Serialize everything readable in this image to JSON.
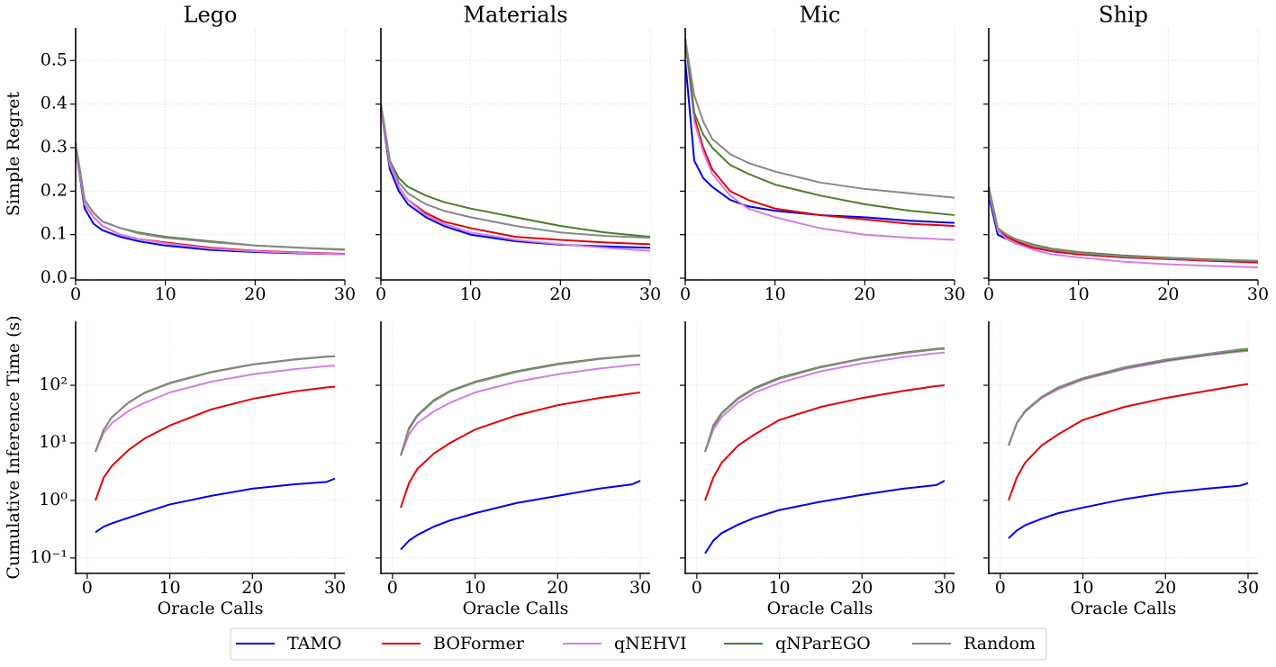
{
  "chart_data": [
    {
      "type": "line",
      "title": "Lego",
      "ylabel": "Simple Regret",
      "grid": true,
      "x": [
        0,
        1,
        2,
        3,
        5,
        7,
        10,
        15,
        20,
        25,
        30
      ],
      "xlim": [
        0,
        30
      ],
      "xticks": [
        0,
        10,
        20,
        30
      ],
      "ylim": [
        -0.004,
        0.575
      ],
      "yticks": [
        {
          "value": 0,
          "label": "0.0"
        },
        0.1,
        0.2,
        0.3,
        0.4,
        0.5
      ],
      "series": [
        {
          "name": "TAMO",
          "color": "#0000ee",
          "values": [
            0.3,
            0.16,
            0.125,
            0.11,
            0.095,
            0.085,
            0.075,
            0.065,
            0.06,
            0.057,
            0.055
          ]
        },
        {
          "name": "BOFormer",
          "color": "#e60000",
          "values": [
            0.3,
            0.17,
            0.14,
            0.12,
            0.1,
            0.09,
            0.082,
            0.07,
            0.063,
            0.059,
            0.056
          ]
        },
        {
          "name": "qNEHVI",
          "color": "#d47ee6",
          "values": [
            0.3,
            0.17,
            0.14,
            0.12,
            0.1,
            0.09,
            0.08,
            0.068,
            0.062,
            0.058,
            0.055
          ]
        },
        {
          "name": "qNParEGO",
          "color": "#4a7f2a",
          "values": [
            0.31,
            0.18,
            0.15,
            0.13,
            0.115,
            0.105,
            0.095,
            0.085,
            0.075,
            0.07,
            0.066
          ]
        },
        {
          "name": "Random",
          "color": "#888888",
          "values": [
            0.31,
            0.18,
            0.15,
            0.13,
            0.115,
            0.103,
            0.093,
            0.083,
            0.075,
            0.07,
            0.065
          ]
        }
      ]
    },
    {
      "type": "line",
      "title": "Materials",
      "grid": true,
      "x": [
        0,
        1,
        2,
        3,
        5,
        7,
        10,
        15,
        20,
        25,
        30
      ],
      "xlim": [
        0,
        30
      ],
      "xticks": [
        0,
        10,
        20,
        30
      ],
      "ylim": [
        -0.004,
        0.575
      ],
      "yticks": [
        0,
        0.1,
        0.2,
        0.3,
        0.4,
        0.5
      ],
      "series": [
        {
          "name": "TAMO",
          "color": "#0000ee",
          "values": [
            0.39,
            0.25,
            0.2,
            0.17,
            0.14,
            0.12,
            0.1,
            0.085,
            0.077,
            0.073,
            0.07
          ]
        },
        {
          "name": "BOFormer",
          "color": "#e60000",
          "values": [
            0.39,
            0.26,
            0.21,
            0.18,
            0.15,
            0.13,
            0.115,
            0.095,
            0.088,
            0.082,
            0.078
          ]
        },
        {
          "name": "qNEHVI",
          "color": "#d47ee6",
          "values": [
            0.39,
            0.26,
            0.21,
            0.18,
            0.145,
            0.125,
            0.105,
            0.088,
            0.078,
            0.07,
            0.063
          ]
        },
        {
          "name": "qNParEGO",
          "color": "#4a7f2a",
          "values": [
            0.4,
            0.27,
            0.23,
            0.21,
            0.19,
            0.175,
            0.16,
            0.14,
            0.12,
            0.105,
            0.095
          ]
        },
        {
          "name": "Random",
          "color": "#888888",
          "values": [
            0.4,
            0.27,
            0.22,
            0.195,
            0.17,
            0.155,
            0.14,
            0.12,
            0.105,
            0.097,
            0.093
          ]
        }
      ]
    },
    {
      "type": "line",
      "title": "Mic",
      "grid": true,
      "x": [
        0,
        1,
        2,
        3,
        5,
        7,
        10,
        15,
        20,
        25,
        30
      ],
      "xlim": [
        0,
        30
      ],
      "xticks": [
        0,
        10,
        20,
        30
      ],
      "ylim": [
        -0.004,
        0.575
      ],
      "yticks": [
        0,
        0.1,
        0.2,
        0.3,
        0.4,
        0.5
      ],
      "series": [
        {
          "name": "TAMO",
          "color": "#0000ee",
          "values": [
            0.5,
            0.27,
            0.23,
            0.21,
            0.18,
            0.165,
            0.155,
            0.145,
            0.14,
            0.132,
            0.127
          ]
        },
        {
          "name": "BOFormer",
          "color": "#e60000",
          "values": [
            0.55,
            0.37,
            0.3,
            0.25,
            0.2,
            0.18,
            0.16,
            0.145,
            0.135,
            0.125,
            0.12
          ]
        },
        {
          "name": "qNEHVI",
          "color": "#d47ee6",
          "values": [
            0.55,
            0.36,
            0.29,
            0.24,
            0.19,
            0.16,
            0.14,
            0.115,
            0.1,
            0.093,
            0.088
          ]
        },
        {
          "name": "qNParEGO",
          "color": "#4a7f2a",
          "values": [
            0.55,
            0.38,
            0.33,
            0.3,
            0.26,
            0.24,
            0.215,
            0.19,
            0.17,
            0.155,
            0.145
          ]
        },
        {
          "name": "Random",
          "color": "#888888",
          "values": [
            0.55,
            0.42,
            0.36,
            0.32,
            0.285,
            0.265,
            0.245,
            0.22,
            0.205,
            0.195,
            0.185
          ]
        }
      ]
    },
    {
      "type": "line",
      "title": "Ship",
      "grid": true,
      "x": [
        0,
        1,
        2,
        3,
        5,
        7,
        10,
        15,
        20,
        25,
        30
      ],
      "xlim": [
        0,
        30
      ],
      "xticks": [
        0,
        10,
        20,
        30
      ],
      "ylim": [
        -0.004,
        0.575
      ],
      "yticks": [
        0,
        0.1,
        0.2,
        0.3,
        0.4,
        0.5
      ],
      "series": [
        {
          "name": "TAMO",
          "color": "#0000ee",
          "values": [
            0.19,
            0.1,
            0.09,
            0.08,
            0.07,
            0.062,
            0.055,
            0.048,
            0.044,
            0.04,
            0.037
          ]
        },
        {
          "name": "BOFormer",
          "color": "#e60000",
          "values": [
            0.2,
            0.11,
            0.095,
            0.085,
            0.07,
            0.062,
            0.055,
            0.048,
            0.044,
            0.04,
            0.036
          ]
        },
        {
          "name": "qNEHVI",
          "color": "#d47ee6",
          "values": [
            0.2,
            0.11,
            0.09,
            0.08,
            0.065,
            0.055,
            0.048,
            0.038,
            0.032,
            0.028,
            0.025
          ]
        },
        {
          "name": "qNParEGO",
          "color": "#4a7f2a",
          "values": [
            0.21,
            0.115,
            0.1,
            0.09,
            0.077,
            0.068,
            0.06,
            0.052,
            0.047,
            0.043,
            0.04
          ]
        },
        {
          "name": "Random",
          "color": "#888888",
          "values": [
            0.21,
            0.115,
            0.1,
            0.09,
            0.075,
            0.066,
            0.058,
            0.05,
            0.046,
            0.042,
            0.04
          ]
        }
      ]
    },
    {
      "type": "line",
      "xlabel": "Oracle Calls",
      "ylabel": "Cumulative Inference Time (s)",
      "grid": true,
      "ylog": true,
      "x": [
        1,
        2,
        3,
        5,
        7,
        10,
        15,
        20,
        25,
        29,
        30
      ],
      "xlim": [
        -1.4,
        31.2
      ],
      "xticks": [
        0,
        10,
        20,
        30
      ],
      "ylim": [
        0.054,
        1290
      ],
      "yticks": [
        {
          "value": 0.1,
          "label": "10⁻¹"
        },
        {
          "value": 1,
          "label": "10⁰"
        },
        {
          "value": 10,
          "label": "10¹"
        },
        {
          "value": 100,
          "label": "10²"
        }
      ],
      "series": [
        {
          "name": "TAMO",
          "color": "#0000ee",
          "values": [
            0.28,
            0.35,
            0.4,
            0.5,
            0.62,
            0.85,
            1.2,
            1.6,
            1.9,
            2.1,
            2.4
          ]
        },
        {
          "name": "BOFormer",
          "color": "#e60000",
          "values": [
            1,
            2.5,
            4,
            7.5,
            12,
            20,
            38,
            58,
            78,
            92,
            95
          ]
        },
        {
          "name": "qNEHVI",
          "color": "#d47ee6",
          "values": [
            7,
            15,
            22,
            36,
            50,
            75,
            115,
            155,
            190,
            215,
            220
          ]
        },
        {
          "name": "qNParEGO",
          "color": "#4a7f2a",
          "values": [
            7,
            17,
            28,
            50,
            75,
            110,
            170,
            230,
            280,
            315,
            320
          ]
        },
        {
          "name": "Random",
          "color": "#888888",
          "values": [
            7,
            17,
            28,
            50,
            74,
            108,
            168,
            228,
            278,
            312,
            318
          ]
        }
      ]
    },
    {
      "type": "line",
      "xlabel": "Oracle Calls",
      "grid": true,
      "ylog": true,
      "x": [
        1,
        2,
        3,
        5,
        7,
        10,
        15,
        20,
        25,
        29,
        30
      ],
      "xlim": [
        -1.4,
        31.2
      ],
      "xticks": [
        0,
        10,
        20,
        30
      ],
      "ylim": [
        0.054,
        1290
      ],
      "yticks": [
        0.1,
        1,
        10,
        100
      ],
      "series": [
        {
          "name": "TAMO",
          "color": "#0000ee",
          "values": [
            0.14,
            0.2,
            0.25,
            0.35,
            0.45,
            0.6,
            0.9,
            1.2,
            1.6,
            1.9,
            2.2
          ]
        },
        {
          "name": "BOFormer",
          "color": "#e60000",
          "values": [
            0.75,
            2,
            3.5,
            6.5,
            10,
            17,
            30,
            45,
            60,
            72,
            75
          ]
        },
        {
          "name": "qNEHVI",
          "color": "#d47ee6",
          "values": [
            6,
            14,
            22,
            35,
            50,
            75,
            115,
            155,
            195,
            225,
            230
          ]
        },
        {
          "name": "qNParEGO",
          "color": "#4a7f2a",
          "values": [
            6,
            18,
            30,
            55,
            80,
            115,
            175,
            235,
            290,
            325,
            330
          ]
        },
        {
          "name": "Random",
          "color": "#888888",
          "values": [
            6,
            17,
            29,
            53,
            78,
            112,
            170,
            230,
            285,
            320,
            325
          ]
        }
      ]
    },
    {
      "type": "line",
      "xlabel": "Oracle Calls",
      "grid": true,
      "ylog": true,
      "x": [
        1,
        2,
        3,
        5,
        7,
        10,
        15,
        20,
        25,
        29,
        30
      ],
      "xlim": [
        -1.4,
        31.2
      ],
      "xticks": [
        0,
        10,
        20,
        30
      ],
      "ylim": [
        0.054,
        1290
      ],
      "yticks": [
        0.1,
        1,
        10,
        100
      ],
      "series": [
        {
          "name": "TAMO",
          "color": "#0000ee",
          "values": [
            0.12,
            0.2,
            0.27,
            0.38,
            0.5,
            0.68,
            0.95,
            1.25,
            1.6,
            1.85,
            2.2
          ]
        },
        {
          "name": "BOFormer",
          "color": "#e60000",
          "values": [
            1,
            2.5,
            4.5,
            9,
            14,
            25,
            42,
            60,
            80,
            97,
            100
          ]
        },
        {
          "name": "qNEHVI",
          "color": "#d47ee6",
          "values": [
            7,
            17,
            28,
            50,
            75,
            110,
            175,
            240,
            310,
            360,
            370
          ]
        },
        {
          "name": "qNParEGO",
          "color": "#4a7f2a",
          "values": [
            7,
            20,
            33,
            60,
            90,
            135,
            210,
            290,
            370,
            430,
            440
          ]
        },
        {
          "name": "Random",
          "color": "#888888",
          "values": [
            7,
            19,
            32,
            58,
            87,
            130,
            205,
            285,
            360,
            420,
            430
          ]
        }
      ]
    },
    {
      "type": "line",
      "xlabel": "Oracle Calls",
      "grid": true,
      "ylog": true,
      "x": [
        1,
        2,
        3,
        5,
        7,
        10,
        15,
        20,
        25,
        29,
        30
      ],
      "xlim": [
        -1.4,
        31.2
      ],
      "xticks": [
        0,
        10,
        20,
        30
      ],
      "ylim": [
        0.054,
        1290
      ],
      "yticks": [
        0.1,
        1,
        10,
        100
      ],
      "series": [
        {
          "name": "TAMO",
          "color": "#0000ee",
          "values": [
            0.22,
            0.3,
            0.37,
            0.48,
            0.6,
            0.75,
            1.05,
            1.35,
            1.6,
            1.8,
            2.0
          ]
        },
        {
          "name": "BOFormer",
          "color": "#e60000",
          "values": [
            1,
            2.5,
            4.5,
            9,
            14,
            25,
            42,
            60,
            80,
            100,
            105
          ]
        },
        {
          "name": "qNEHVI",
          "color": "#d47ee6",
          "values": [
            9,
            22,
            35,
            60,
            85,
            125,
            190,
            260,
            330,
            385,
            395
          ]
        },
        {
          "name": "qNParEGO",
          "color": "#4a7f2a",
          "values": [
            9,
            22,
            35,
            62,
            90,
            130,
            200,
            270,
            340,
            400,
            410
          ]
        },
        {
          "name": "Random",
          "color": "#888888",
          "values": [
            9,
            22,
            36,
            63,
            92,
            133,
            205,
            280,
            350,
            420,
            430
          ]
        }
      ]
    }
  ]
}
